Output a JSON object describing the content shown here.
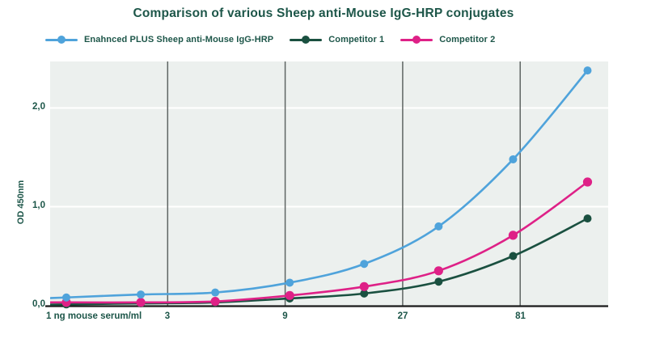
{
  "chart_data": {
    "type": "line",
    "title": "Comparison of various Sheep anti-Mouse IgG-HRP conjugates",
    "ylabel": "OD 450nm",
    "xlabel_first_tick": "1 ng mouse serum/ml",
    "x_scale": "log",
    "x": [
      1,
      2,
      4,
      8,
      16,
      32,
      64,
      128
    ],
    "x_ticks": [
      "3",
      "9",
      "27",
      "81"
    ],
    "x_tick_values": [
      3,
      9,
      27,
      81
    ],
    "y_ticks": [
      "0,0",
      "1,0",
      "2,0"
    ],
    "y_tick_values": [
      0,
      1,
      2
    ],
    "ylim": [
      0,
      2.47
    ],
    "grid": "vertical dark lines at x ticks, horizontal white lines at y ticks",
    "legend_position": "top-left",
    "series": [
      {
        "name": "Enahnced PLUS Sheep anti-Mouse IgG-HRP",
        "color": "#4FA3DB",
        "values": [
          0.08,
          0.11,
          0.13,
          0.23,
          0.42,
          0.8,
          1.48,
          2.38
        ]
      },
      {
        "name": "Competitor 1",
        "color": "#1A5040",
        "values": [
          0.01,
          0.02,
          0.03,
          0.07,
          0.12,
          0.24,
          0.5,
          0.88
        ]
      },
      {
        "name": "Competitor 2",
        "color": "#DE2187",
        "values": [
          0.03,
          0.03,
          0.04,
          0.1,
          0.19,
          0.35,
          0.71,
          1.25
        ]
      }
    ],
    "colors": {
      "text": "#1D5649",
      "plot_background": "#ECF0EE",
      "vertical_grid": "#5F6563",
      "horizontal_grid": "#FFFFFF",
      "axis_line": "#1A1A1A"
    }
  }
}
